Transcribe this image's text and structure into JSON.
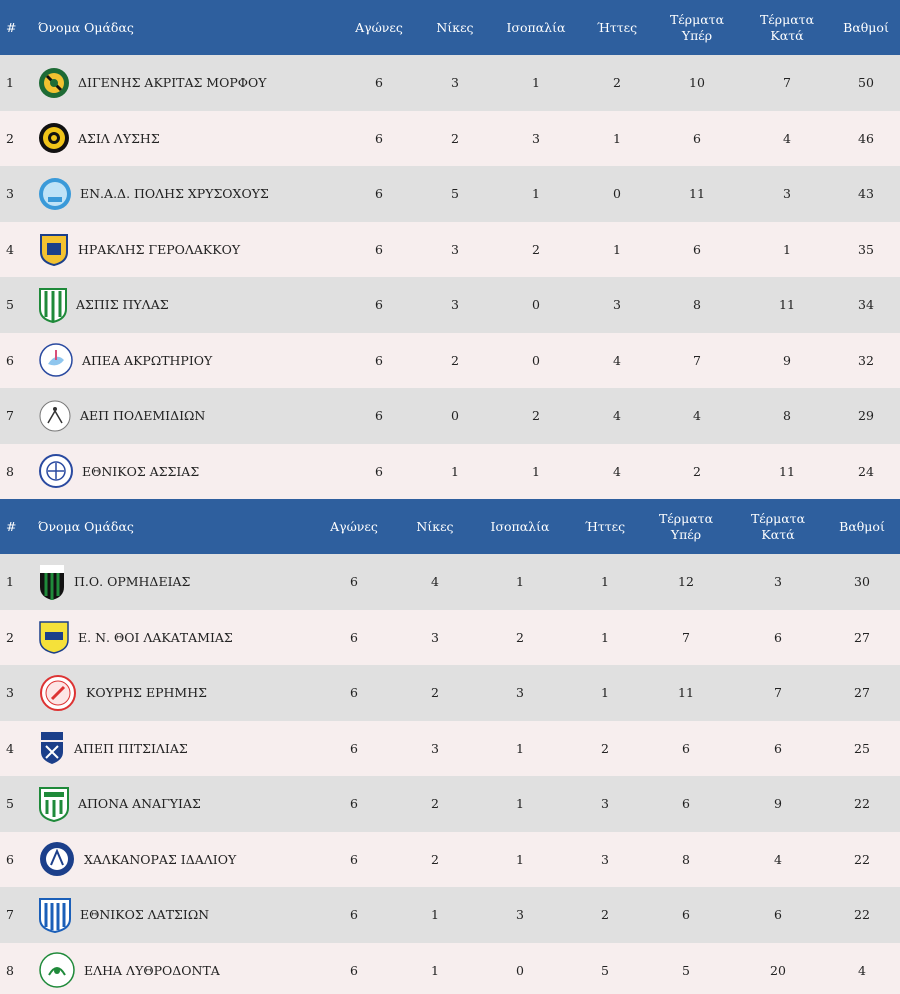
{
  "colors": {
    "header_bg": "#2e5f9e",
    "row_odd": "#e0e0e0",
    "row_even": "#f7eeee"
  },
  "headers": {
    "pos": "#",
    "team": "Όνομα Ομάδας",
    "played": "Αγώνες",
    "wins": "Νίκες",
    "draws": "Ισοπαλία",
    "losses": "Ήττες",
    "gf": "Τέρματα Υπέρ",
    "ga": "Τέρματα Κατά",
    "points": "Βαθμοί"
  },
  "groups": [
    {
      "rows": [
        {
          "pos": "1",
          "team": "ΔΙΓΕΝΗΣ ΑΚΡΙΤΑΣ ΜΟΡΦΟΥ",
          "logo": "digenis-crest-icon",
          "played": "6",
          "wins": "3",
          "draws": "1",
          "losses": "2",
          "gf": "10",
          "ga": "7",
          "points": "50"
        },
        {
          "pos": "2",
          "team": "ΑΣΙΛ ΛΥΣΗΣ",
          "logo": "asil-crest-icon",
          "played": "6",
          "wins": "2",
          "draws": "3",
          "losses": "1",
          "gf": "6",
          "ga": "4",
          "points": "46"
        },
        {
          "pos": "3",
          "team": "ΕΝ.Α.Δ. ΠΟΛΗΣ ΧΡΥΣΟΧΟΥΣ",
          "logo": "enad-crest-icon",
          "played": "6",
          "wins": "5",
          "draws": "1",
          "losses": "0",
          "gf": "11",
          "ga": "3",
          "points": "43"
        },
        {
          "pos": "4",
          "team": "ΗΡΑΚΛΗΣ ΓΕΡΟΛΑΚΚΟΥ",
          "logo": "iraklis-crest-icon",
          "played": "6",
          "wins": "3",
          "draws": "2",
          "losses": "1",
          "gf": "6",
          "ga": "1",
          "points": "35"
        },
        {
          "pos": "5",
          "team": "ΑΣΠΙΣ ΠΥΛΑΣ",
          "logo": "aspis-crest-icon",
          "played": "6",
          "wins": "3",
          "draws": "0",
          "losses": "3",
          "gf": "8",
          "ga": "11",
          "points": "34"
        },
        {
          "pos": "6",
          "team": "ΑΠΕΑ ΑΚΡΩΤΗΡΙΟΥ",
          "logo": "apea-crest-icon",
          "played": "6",
          "wins": "2",
          "draws": "0",
          "losses": "4",
          "gf": "7",
          "ga": "9",
          "points": "32"
        },
        {
          "pos": "7",
          "team": "ΑΕΠ ΠΟΛΕΜΙΔΙΩΝ",
          "logo": "aep-crest-icon",
          "played": "6",
          "wins": "0",
          "draws": "2",
          "losses": "4",
          "gf": "4",
          "ga": "8",
          "points": "29"
        },
        {
          "pos": "8",
          "team": "ΕΘΝΙΚΟΣ ΑΣΣΙΑΣ",
          "logo": "ethnikos-assias-crest-icon",
          "played": "6",
          "wins": "1",
          "draws": "1",
          "losses": "4",
          "gf": "2",
          "ga": "11",
          "points": "24"
        }
      ]
    },
    {
      "rows": [
        {
          "pos": "1",
          "team": "Π.Ο. ΟΡΜΗΔΕΙΑΣ",
          "logo": "ormideia-crest-icon",
          "played": "6",
          "wins": "4",
          "draws": "1",
          "losses": "1",
          "gf": "12",
          "ga": "3",
          "points": "30"
        },
        {
          "pos": "2",
          "team": "Ε. Ν. ΘΟΙ ΛΑΚΑΤΑΜΙΑΣ",
          "logo": "thoi-crest-icon",
          "played": "6",
          "wins": "3",
          "draws": "2",
          "losses": "1",
          "gf": "7",
          "ga": "6",
          "points": "27"
        },
        {
          "pos": "3",
          "team": "ΚΟΥΡΗΣ ΕΡΗΜΗΣ",
          "logo": "kouris-crest-icon",
          "played": "6",
          "wins": "2",
          "draws": "3",
          "losses": "1",
          "gf": "11",
          "ga": "7",
          "points": "27"
        },
        {
          "pos": "4",
          "team": "ΑΠΕΠ ΠΙΤΣΙΛΙΑΣ",
          "logo": "apep-crest-icon",
          "played": "6",
          "wins": "3",
          "draws": "1",
          "losses": "2",
          "gf": "6",
          "ga": "6",
          "points": "25"
        },
        {
          "pos": "5",
          "team": "ΑΠΟΝΑ ΑΝΑΓΥΙΑΣ",
          "logo": "apona-crest-icon",
          "played": "6",
          "wins": "2",
          "draws": "1",
          "losses": "3",
          "gf": "6",
          "ga": "9",
          "points": "22"
        },
        {
          "pos": "6",
          "team": "ΧΑΛΚΑΝΟΡΑΣ ΙΔΑΛΙΟΥ",
          "logo": "chalkanoras-crest-icon",
          "played": "6",
          "wins": "2",
          "draws": "1",
          "losses": "3",
          "gf": "8",
          "ga": "4",
          "points": "22"
        },
        {
          "pos": "7",
          "team": "ΕΘΝΙΚΟΣ ΛΑΤΣΙΩΝ",
          "logo": "ethnikos-latsion-crest-icon",
          "played": "6",
          "wins": "1",
          "draws": "3",
          "losses": "2",
          "gf": "6",
          "ga": "6",
          "points": "22"
        },
        {
          "pos": "8",
          "team": "ΕΛΗΑ ΛΥΘΡΟΔΟΝΤΑ",
          "logo": "elia-crest-icon",
          "played": "6",
          "wins": "1",
          "draws": "0",
          "losses": "5",
          "gf": "5",
          "ga": "20",
          "points": "4"
        }
      ]
    }
  ]
}
